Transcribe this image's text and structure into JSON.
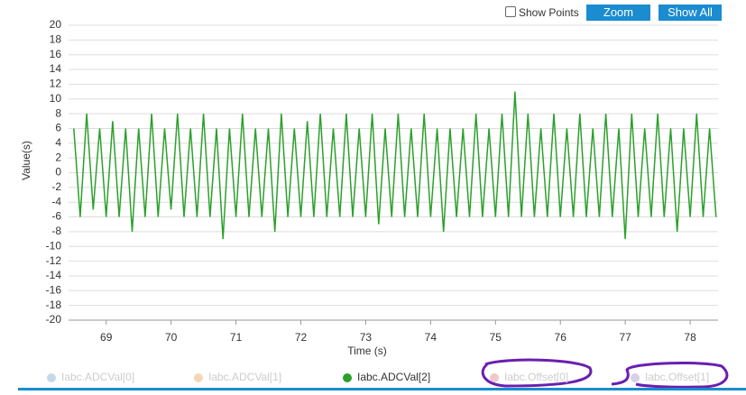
{
  "controls": {
    "show_points": "Show Points",
    "zoom": "Zoom",
    "show_all": "Show All"
  },
  "chart_data": {
    "type": "line",
    "xlabel": "Time (s)",
    "ylabel": "Value(s)",
    "x": [
      68.5,
      68.6,
      68.7,
      68.8,
      68.9,
      69.0,
      69.1,
      69.2,
      69.3,
      69.4,
      69.5,
      69.6,
      69.7,
      69.8,
      69.9,
      70.0,
      70.1,
      70.2,
      70.3,
      70.4,
      70.5,
      70.6,
      70.7,
      70.8,
      70.9,
      71.0,
      71.1,
      71.2,
      71.3,
      71.4,
      71.5,
      71.6,
      71.7,
      71.8,
      71.9,
      72.0,
      72.1,
      72.2,
      72.3,
      72.4,
      72.5,
      72.6,
      72.7,
      72.8,
      72.9,
      73.0,
      73.1,
      73.2,
      73.3,
      73.4,
      73.5,
      73.6,
      73.7,
      73.8,
      73.9,
      74.0,
      74.1,
      74.2,
      74.3,
      74.4,
      74.5,
      74.6,
      74.7,
      74.8,
      74.9,
      75.0,
      75.1,
      75.2,
      75.3,
      75.4,
      75.5,
      75.6,
      75.7,
      75.8,
      75.9,
      76.0,
      76.1,
      76.2,
      76.3,
      76.4,
      76.5,
      76.6,
      76.7,
      76.8,
      76.9,
      77.0,
      77.1,
      77.2,
      77.3,
      77.4,
      77.5,
      77.6,
      77.7,
      77.8,
      77.9,
      78.0,
      78.1,
      78.2,
      78.3,
      78.4
    ],
    "series": [
      {
        "name": "Iabc.ADCVal[0]",
        "color": "#c5d8ea",
        "visible": false
      },
      {
        "name": "Iabc.ADCVal[1]",
        "color": "#f8d5b8",
        "visible": false
      },
      {
        "name": "Iabc.ADCVal[2]",
        "color": "#2ca02c",
        "visible": true,
        "values": [
          6,
          -6,
          8,
          -5,
          6,
          -6,
          7,
          -6,
          6,
          -8,
          6,
          -6,
          8,
          -6,
          6,
          -5,
          8,
          -6,
          6,
          -6,
          8,
          -6,
          6,
          -9,
          6,
          -6,
          8,
          -6,
          6,
          -6,
          6,
          -8,
          8,
          -6,
          6,
          -6,
          7,
          -6,
          8,
          -6,
          6,
          -6,
          8,
          -6,
          6,
          -6,
          8,
          -7,
          6,
          -6,
          8,
          -6,
          6,
          -6,
          8,
          -6,
          6,
          -8,
          6,
          -6,
          6,
          -6,
          8,
          -6,
          6,
          -6,
          8,
          -6,
          11,
          -6,
          8,
          -6,
          6,
          -6,
          8,
          -6,
          6,
          -6,
          8,
          -6,
          6,
          -6,
          8,
          -6,
          6,
          -9,
          8,
          -6,
          6,
          -6,
          8,
          -6,
          6,
          -8,
          6,
          -6,
          8,
          -6,
          6,
          -6
        ]
      },
      {
        "name": "Iabc.Offset[0]",
        "color": "#f0c8cc",
        "visible": false
      },
      {
        "name": "Iabc.Offset[1]",
        "color": "#d8d0e4",
        "visible": false
      }
    ],
    "xlim": [
      68.42,
      78.43
    ],
    "ylim": [
      -20,
      20
    ],
    "xticks": [
      69,
      70,
      71,
      72,
      73,
      74,
      75,
      76,
      77,
      78
    ],
    "yticks": [
      -20,
      -18,
      -16,
      -14,
      -12,
      -10,
      -8,
      -6,
      -4,
      -2,
      0,
      2,
      4,
      6,
      8,
      10,
      12,
      14,
      16,
      18,
      20
    ],
    "grid": true
  }
}
